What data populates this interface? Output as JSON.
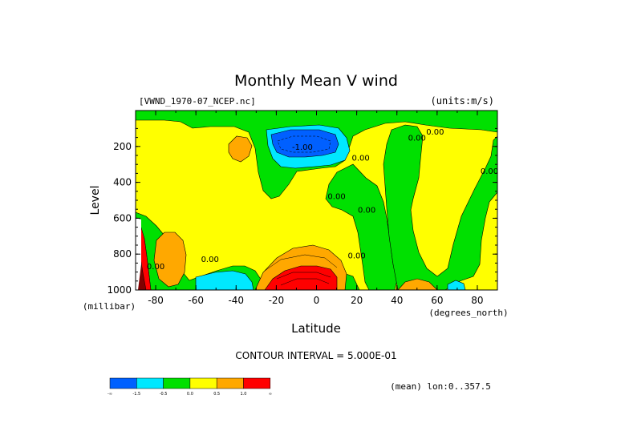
{
  "chart_data": {
    "type": "heatmap",
    "title": "Monthly Mean V wind",
    "dataset": "[VWND_1970-07_NCEP.nc]",
    "units": "(units:m/s)",
    "xlabel": "Latitude",
    "x_units": "(degrees_north)",
    "ylabel": "Level",
    "y_units": "(millibar)",
    "xlim": [
      -90,
      90
    ],
    "ylim": [
      1000,
      0
    ],
    "x_ticks": [
      {
        "value": -80,
        "label": "-80"
      },
      {
        "value": -60,
        "label": "-60"
      },
      {
        "value": -40,
        "label": "-40"
      },
      {
        "value": -20,
        "label": "-20"
      },
      {
        "value": 0,
        "label": "0"
      },
      {
        "value": 20,
        "label": "20"
      },
      {
        "value": 40,
        "label": "40"
      },
      {
        "value": 60,
        "label": "60"
      },
      {
        "value": 80,
        "label": "80"
      }
    ],
    "y_ticks": [
      {
        "value": 200,
        "label": "200"
      },
      {
        "value": 400,
        "label": "400"
      },
      {
        "value": 600,
        "label": "600"
      },
      {
        "value": 800,
        "label": "800"
      },
      {
        "value": 1000,
        "label": "1000"
      }
    ],
    "contour_interval": "CONTOUR INTERVAL = 5.000E-01",
    "region": "(mean) lon:0..357.5",
    "colorbar": {
      "colors": [
        "#0060ff",
        "#00e8ff",
        "#00e000",
        "#ffff00",
        "#ffa800",
        "#ff0000"
      ],
      "labels": [
        "-∞",
        "-1.5",
        "-0.5",
        "0.0",
        "0.5",
        "1.0",
        "∞"
      ]
    },
    "contour_labels": [
      {
        "text": "0.00",
        "x": 50,
        "y": 155
      },
      {
        "text": "0.00",
        "x": 59,
        "y": 120
      },
      {
        "text": "-1.00",
        "x": -7,
        "y": 205
      },
      {
        "text": "0.00",
        "x": 22,
        "y": 265
      },
      {
        "text": "0.00",
        "x": 10,
        "y": 480
      },
      {
        "text": "0.00",
        "x": 25,
        "y": 555
      },
      {
        "text": "0.00",
        "x": -53,
        "y": 830
      },
      {
        "text": "0.00",
        "x": 20,
        "y": 810
      },
      {
        "text": "0.00",
        "x": 86,
        "y": 340
      },
      {
        "text": "0.00",
        "x": -80,
        "y": 870
      }
    ],
    "regions": [
      {
        "level": "0.0 to 0.5",
        "color": "#ffff00",
        "desc": "background"
      },
      {
        "level": "-0.5 to 0.0",
        "color": "#00e000",
        "desc": "upper troposphere band and tropical/mid-latitude columns"
      },
      {
        "level": "-1.5 to -0.5",
        "color": "#00e8ff",
        "desc": "upper tropical minimum"
      },
      {
        "level": "< -1.5",
        "color": "#0060ff",
        "desc": "core near 0N, 175 mb"
      },
      {
        "level": "0.5 to 1.0",
        "color": "#ffa800",
        "desc": "near-surface tropical maximum and isolated cells"
      },
      {
        "level": "> 1.0",
        "color": "#ff0000",
        "desc": "surface max near 5S, 950 mb"
      }
    ]
  }
}
